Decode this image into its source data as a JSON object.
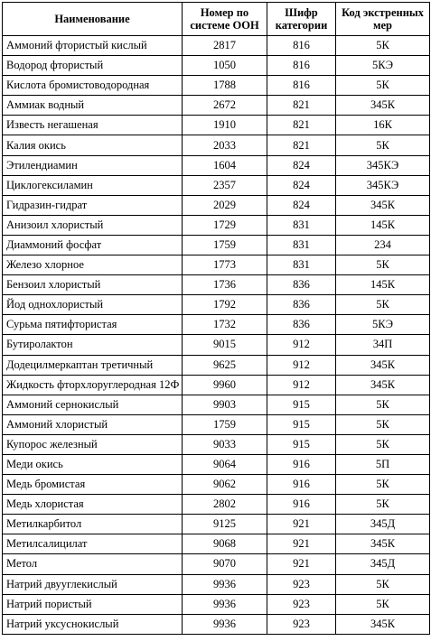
{
  "table": {
    "headers": {
      "name": "Наименование",
      "un_number": "Номер по системе ООН",
      "category": "Шифр категории",
      "emergency_code": "Код экстренных мер"
    },
    "rows": [
      {
        "name": "Аммоний фтористый кислый",
        "un": "2817",
        "cat": "816",
        "code": "5К"
      },
      {
        "name": "Водород фтористый",
        "un": "1050",
        "cat": "816",
        "code": "5КЭ"
      },
      {
        "name": "Кислота бромистоводородная",
        "un": "1788",
        "cat": "816",
        "code": "5К"
      },
      {
        "name": "Аммиак водный",
        "un": "2672",
        "cat": "821",
        "code": "345К"
      },
      {
        "name": "Известь негашеная",
        "un": "1910",
        "cat": "821",
        "code": "16К"
      },
      {
        "name": "Калия окись",
        "un": "2033",
        "cat": "821",
        "code": "5К"
      },
      {
        "name": "Этилендиамин",
        "un": "1604",
        "cat": "824",
        "code": "345КЭ"
      },
      {
        "name": "Циклогексиламин",
        "un": "2357",
        "cat": "824",
        "code": "345КЭ"
      },
      {
        "name": "Гидразин-гидрат",
        "un": "2029",
        "cat": "824",
        "code": "345К"
      },
      {
        "name": "Анизоил хлористый",
        "un": "1729",
        "cat": "831",
        "code": "145К"
      },
      {
        "name": "Диаммоний фосфат",
        "un": "1759",
        "cat": "831",
        "code": "234"
      },
      {
        "name": "Железо хлорное",
        "un": "1773",
        "cat": "831",
        "code": "5К"
      },
      {
        "name": "Бензоил хлористый",
        "un": "1736",
        "cat": "836",
        "code": "145К"
      },
      {
        "name": "Йод однохлористый",
        "un": "1792",
        "cat": "836",
        "code": "5К"
      },
      {
        "name": "Сурьма пятифтористая",
        "un": "1732",
        "cat": "836",
        "code": "5КЭ"
      },
      {
        "name": "Бутиролактон",
        "un": "9015",
        "cat": "912",
        "code": "34П"
      },
      {
        "name": "Додецилмеркаптан третичный",
        "un": "9625",
        "cat": "912",
        "code": "345К"
      },
      {
        "name": "Жидкость фторхлоруглеродная 12Ф",
        "un": "9960",
        "cat": "912",
        "code": "345К"
      },
      {
        "name": "Аммоний сернокислый",
        "un": "9903",
        "cat": "915",
        "code": "5К"
      },
      {
        "name": "Аммоний хлористый",
        "un": "1759",
        "cat": "915",
        "code": "5К"
      },
      {
        "name": "Купорос железный",
        "un": "9033",
        "cat": "915",
        "code": "5К"
      },
      {
        "name": "Меди окись",
        "un": "9064",
        "cat": "916",
        "code": "5П"
      },
      {
        "name": "Медь бромистая",
        "un": "9062",
        "cat": "916",
        "code": "5К"
      },
      {
        "name": "Медь хлористая",
        "un": "2802",
        "cat": "916",
        "code": "5К"
      },
      {
        "name": "Метилкарбитол",
        "un": "9125",
        "cat": "921",
        "code": "345Д"
      },
      {
        "name": "Метилсалицилат",
        "un": "9068",
        "cat": "921",
        "code": "345К"
      },
      {
        "name": "Метол",
        "un": "9070",
        "cat": "921",
        "code": "345Д"
      },
      {
        "name": "Натрий двууглекислый",
        "un": "9936",
        "cat": "923",
        "code": "5К"
      },
      {
        "name": "Натрий пористый",
        "un": "9936",
        "cat": "923",
        "code": "5К"
      },
      {
        "name": "Натрий уксуснокислый",
        "un": "9936",
        "cat": "923",
        "code": "345К"
      }
    ]
  }
}
